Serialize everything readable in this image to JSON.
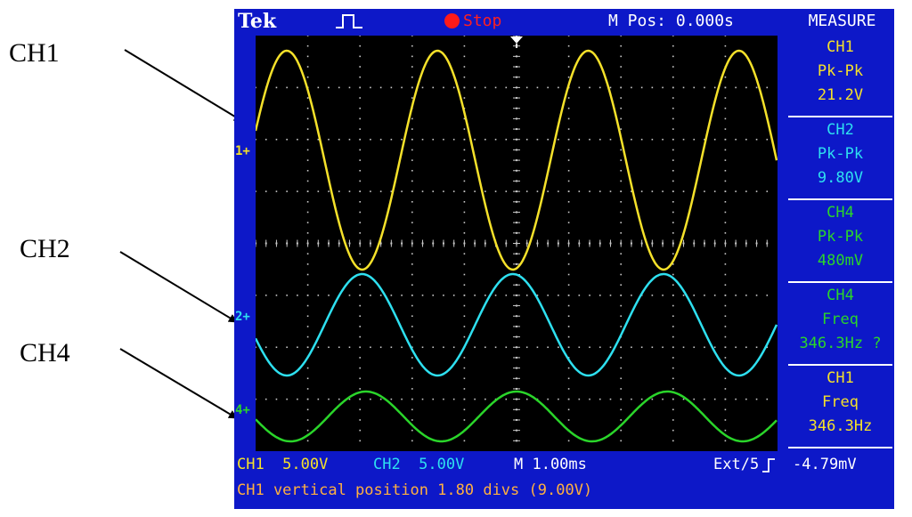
{
  "annotations": {
    "labels": [
      "CH1",
      "CH2",
      "CH4"
    ]
  },
  "scope": {
    "brand": "Tek",
    "trigger_icon": "pulse-trigger-icon",
    "status": "Stop",
    "status_color": "#ff1a1a",
    "mpos": "M Pos: 0.000s",
    "menu_title": "MEASURE",
    "ground_markers": [
      {
        "text": "1+",
        "color": "#f5e12a"
      },
      {
        "text": "2+",
        "color": "#2ee0f0"
      },
      {
        "text": "4+",
        "color": "#2ad52a"
      }
    ],
    "measurements": [
      {
        "channel": "CH1",
        "type": "Pk-Pk",
        "value": "21.2V",
        "color": "#f5e12a"
      },
      {
        "channel": "CH2",
        "type": "Pk-Pk",
        "value": "9.80V",
        "color": "#2ee0f0"
      },
      {
        "channel": "CH4",
        "type": "Pk-Pk",
        "value": "480mV",
        "color": "#2ad52a"
      },
      {
        "channel": "CH4",
        "type": "Freq",
        "value": "346.3Hz ?",
        "color": "#2ad52a"
      },
      {
        "channel": "CH1",
        "type": "Freq",
        "value": "346.3Hz",
        "color": "#f5e12a"
      }
    ],
    "status_bar": {
      "ch1": "CH1  5.00V",
      "ch2": "CH2  5.00V",
      "timebase": "M 1.00ms",
      "trigger_source": "Ext/5",
      "trigger_icon": "rising-edge-icon",
      "trigger_level": "-4.79mV"
    },
    "message": "CH1 vertical position 1.80 divs (9.00V)"
  },
  "traces": {
    "ch1_color": "#f5e12a",
    "ch2_color": "#2ee0f0",
    "ch4_color": "#2ad52a",
    "ch1_pk_pk_V": 21.2,
    "ch2_pk_pk_V": 9.8,
    "ch4_pk_pk_V": 0.48,
    "frequency_hz": 346.3,
    "timebase_s_per_div": 0.001,
    "vertical_scale_V_per_div": 5
  }
}
